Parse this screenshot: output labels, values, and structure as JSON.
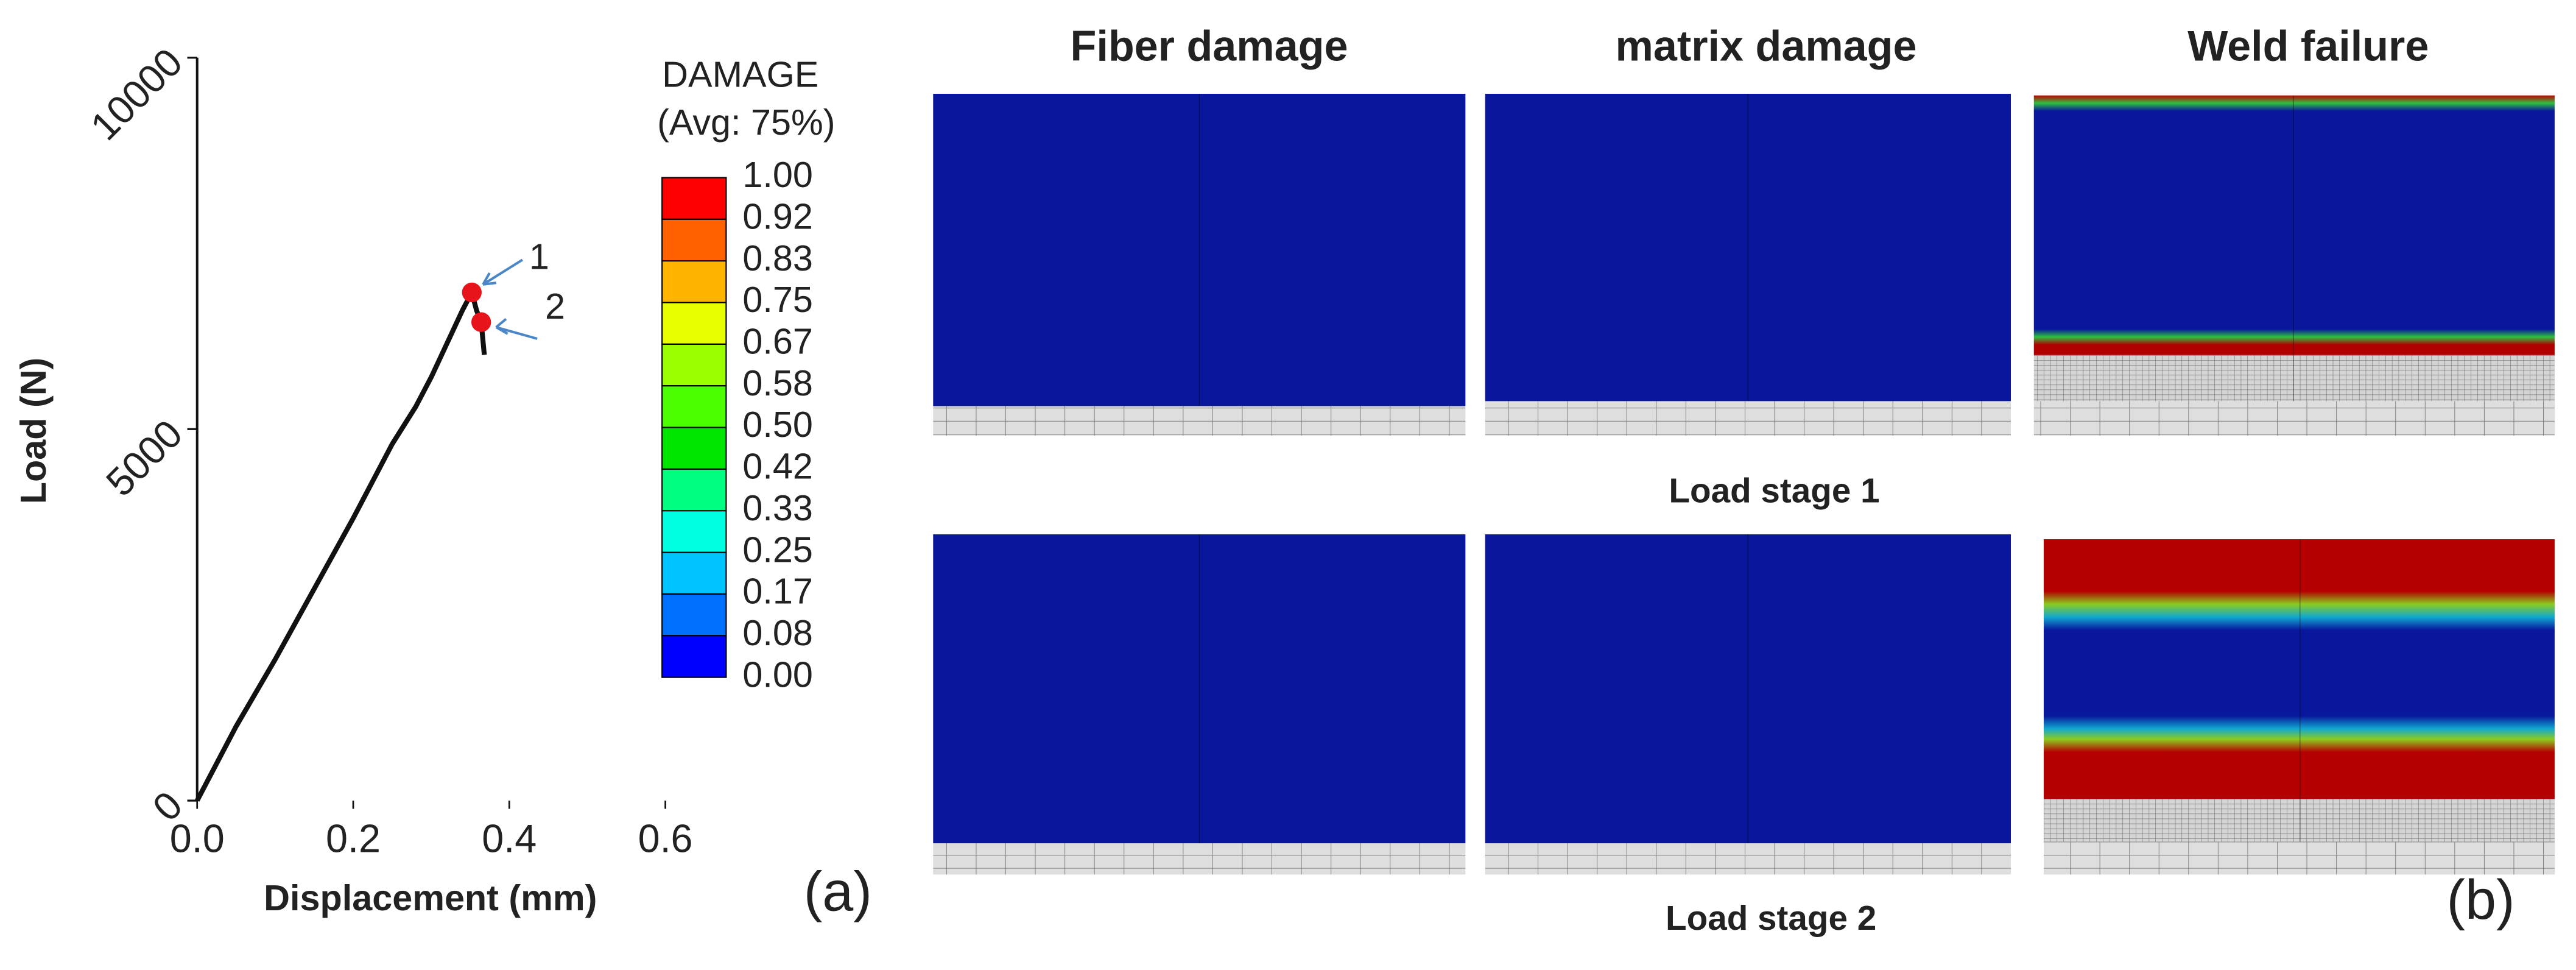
{
  "chart_data": {
    "type": "line",
    "x_label": "Displacement (mm)",
    "y_label": "Load (N)",
    "xlim": [
      0,
      0.6
    ],
    "xticks": [
      {
        "value": 0,
        "label": "0.0"
      },
      0.2,
      0.4,
      0.6
    ],
    "ylim": [
      0,
      10000
    ],
    "yticks": [
      0,
      5000,
      10000
    ],
    "series": [
      {
        "name": "Load",
        "color": "#111111",
        "x": [
          0,
          0.05,
          0.1,
          0.15,
          0.2,
          0.25,
          0.28,
          0.3,
          0.32,
          0.34,
          0.352,
          0.358,
          0.364,
          0.368
        ],
        "values": [
          0,
          1000,
          1900,
          2850,
          3800,
          4800,
          5300,
          5700,
          6150,
          6600,
          6840,
          6600,
          6440,
          6000
        ]
      }
    ],
    "annotations": [
      {
        "label": "1",
        "x": 0.352,
        "y": 6840,
        "color": "#e8141b"
      },
      {
        "label": "2",
        "x": 0.364,
        "y": 6440,
        "color": "#e8141b"
      }
    ],
    "panel_label": "(a)"
  },
  "contour_legend": {
    "title": "DAMAGE",
    "subtitle": "(Avg: 75%)",
    "levels": [
      {
        "value": 1,
        "label": "1.00"
      },
      {
        "value": 0.92,
        "label": "0.92"
      },
      {
        "value": 0.83,
        "label": "0.83"
      },
      {
        "value": 0.75,
        "label": "0.75"
      },
      {
        "value": 0.67,
        "label": "0.67"
      },
      {
        "value": 0.58,
        "label": "0.58"
      },
      {
        "value": 0.5,
        "label": "0.50"
      },
      {
        "value": 0.42,
        "label": "0.42"
      },
      {
        "value": 0.33,
        "label": "0.33"
      },
      {
        "value": 0.25,
        "label": "0.25"
      },
      {
        "value": 0.17,
        "label": "0.17"
      },
      {
        "value": 0.08,
        "label": "0.08"
      },
      {
        "value": 0,
        "label": "0.00"
      }
    ],
    "colors": [
      "#ff0000",
      "#ff6000",
      "#ffb400",
      "#e8ff00",
      "#9cff00",
      "#4cff00",
      "#00e600",
      "#00ff80",
      "#00ffe0",
      "#00c4ff",
      "#0070ff",
      "#0000ff"
    ]
  },
  "panel_b": {
    "columns": [
      "Fiber damage",
      "matrix damage",
      "Weld failure"
    ],
    "rows": [
      "Load stage 1",
      "Load stage 2"
    ],
    "panel_label": "(b)"
  }
}
